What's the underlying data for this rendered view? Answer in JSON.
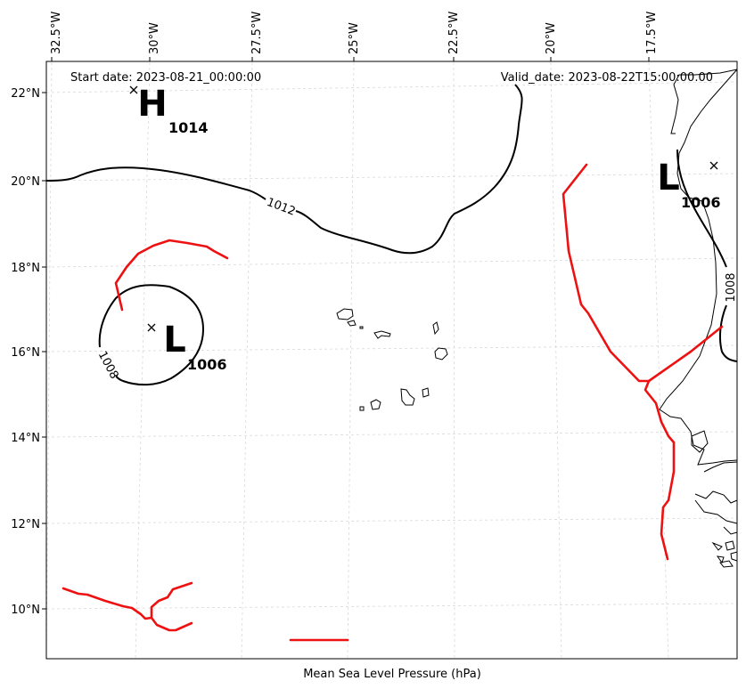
{
  "header": {
    "start_date": "Start date: 2023-08-21_00:00:00",
    "valid_date": "Valid_date: 2023-08-22T15:00:00.00"
  },
  "xlabel": "Mean Sea Level Pressure (hPa)",
  "lon_ticks": [
    "32.5°W",
    "30°W",
    "27.5°W",
    "25°W",
    "22.5°W",
    "20°W",
    "17.5°W"
  ],
  "lat_ticks": [
    "22°N",
    "20°N",
    "18°N",
    "16°N",
    "14°N",
    "12°N",
    "10°N"
  ],
  "pressure_centers": [
    {
      "type": "H",
      "value": "1014"
    },
    {
      "type": "L",
      "value": "1006"
    },
    {
      "type": "L",
      "value": "1006"
    }
  ],
  "isobar_labels": [
    "1012",
    "1008",
    "1008"
  ],
  "colors": {
    "trough": "#ee1111",
    "isobar": "#000000",
    "grid": "#d9d9d9"
  }
}
